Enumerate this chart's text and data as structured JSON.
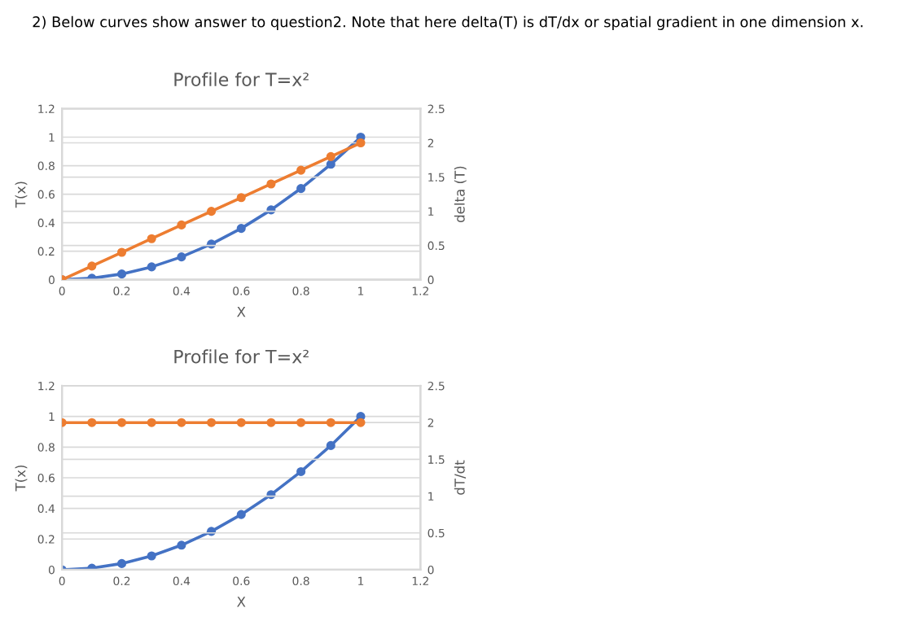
{
  "chart_data": [
    {
      "type": "line",
      "title": "Profile for T=x²",
      "xlabel": "X",
      "ylabel": "T(x)",
      "y2label": "delta (T)",
      "annotations": [
        "2) Below curves show answer to question2. Note that here delta(T) is dT/dx or spatial gradient in one dimension x."
      ],
      "x": [
        0,
        0.1,
        0.2,
        0.3,
        0.4,
        0.5,
        0.6,
        0.7,
        0.8,
        0.9,
        1
      ],
      "series": [
        {
          "color": "#4472c4",
          "values": [
            0,
            0.01,
            0.04,
            0.09,
            0.16,
            0.25,
            0.36,
            0.49,
            0.64,
            0.81,
            1
          ]
        },
        {
          "color": "#ed7d31",
          "axis": "y2",
          "values": [
            0,
            0.2,
            0.4,
            0.6,
            0.8,
            1,
            1.2,
            1.4,
            1.6,
            1.8,
            2
          ]
        }
      ],
      "xlim": [
        0,
        1.2
      ],
      "xticks": [
        0,
        0.2,
        0.4,
        0.6,
        0.8,
        1,
        1.2
      ],
      "ylim": [
        0,
        1.2
      ],
      "yticks": [
        0,
        0.2,
        0.4,
        0.6,
        0.8,
        1,
        1.2
      ],
      "y2lim": [
        0,
        2.5
      ],
      "y2ticks": [
        0,
        0.5,
        1,
        1.5,
        2,
        2.5
      ],
      "grid": "y",
      "marker": "circle",
      "line_style": "solid",
      "legend": false
    },
    {
      "type": "line",
      "title": "Profile for T=x²",
      "xlabel": "X",
      "ylabel": "T(x)",
      "y2label": "dT/dt",
      "x": [
        0,
        0.1,
        0.2,
        0.3,
        0.4,
        0.5,
        0.6,
        0.7,
        0.8,
        0.9,
        1
      ],
      "series": [
        {
          "color": "#4472c4",
          "values": [
            0,
            0.01,
            0.04,
            0.09,
            0.16,
            0.25,
            0.36,
            0.49,
            0.64,
            0.81,
            1
          ]
        },
        {
          "color": "#ed7d31",
          "axis": "y2",
          "values": [
            2,
            2,
            2,
            2,
            2,
            2,
            2,
            2,
            2,
            2,
            2
          ]
        }
      ],
      "xlim": [
        0,
        1.2
      ],
      "xticks": [
        0,
        0.2,
        0.4,
        0.6,
        0.8,
        1,
        1.2
      ],
      "ylim": [
        0,
        1.2
      ],
      "yticks": [
        0,
        0.2,
        0.4,
        0.6,
        0.8,
        1,
        1.2
      ],
      "y2lim": [
        0,
        2.5
      ],
      "y2ticks": [
        0,
        0.5,
        1,
        1.5,
        2,
        2.5
      ],
      "grid": "y",
      "marker": "circle",
      "line_style": "solid",
      "legend": false
    }
  ]
}
